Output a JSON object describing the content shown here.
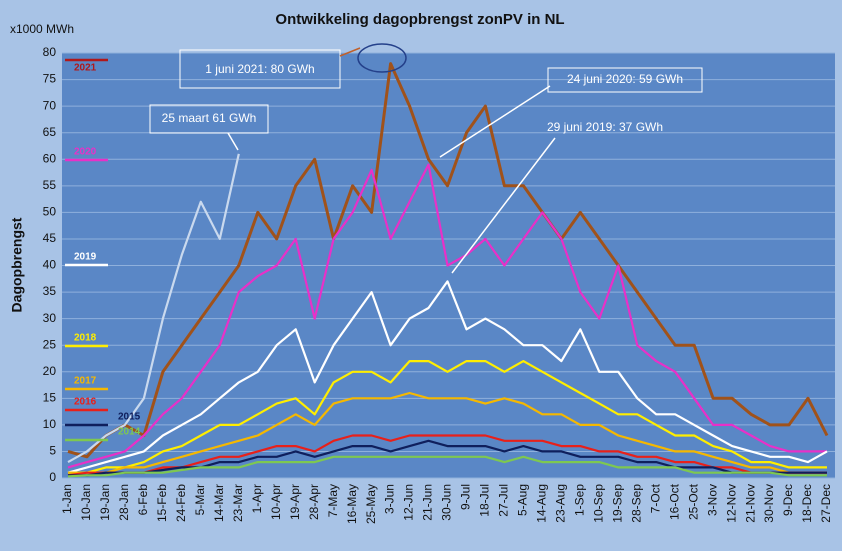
{
  "chart_data": {
    "type": "line",
    "title": "Ontwikkeling dagopbrengst zonPV in NL",
    "y_label": "Dagopbrengst",
    "y_unit": "x1000 MWh",
    "categories": [
      "1-Jan",
      "10-Jan",
      "19-Jan",
      "28-Jan",
      "6-Feb",
      "15-Feb",
      "24-Feb",
      "5-Mar",
      "14-Mar",
      "23-Mar",
      "1-Apr",
      "10-Apr",
      "19-Apr",
      "28-Apr",
      "7-May",
      "16-May",
      "25-May",
      "3-Jun",
      "12-Jun",
      "21-Jun",
      "30-Jun",
      "9-Jul",
      "18-Jul",
      "27-Jul",
      "5-Aug",
      "14-Aug",
      "23-Aug",
      "1-Sep",
      "10-Sep",
      "19-Sep",
      "28-Sep",
      "7-Oct",
      "16-Oct",
      "25-Oct",
      "3-Nov",
      "12-Nov",
      "21-Nov",
      "30-Nov",
      "9-Dec",
      "18-Dec",
      "27-Dec"
    ],
    "ylim": [
      0,
      80
    ],
    "yticks": [
      0,
      5,
      10,
      15,
      20,
      25,
      30,
      35,
      40,
      45,
      50,
      55,
      60,
      65,
      70,
      75,
      80
    ],
    "grid": true,
    "series": [
      {
        "name": "2021",
        "color": "#a0521a",
        "values": [
          5,
          4,
          8,
          10,
          8,
          20,
          25,
          30,
          35,
          40,
          50,
          45,
          55,
          60,
          45,
          55,
          50,
          78,
          70,
          60,
          55,
          65,
          70,
          55,
          55,
          50,
          45,
          50,
          45,
          40,
          35,
          30,
          25,
          25,
          15,
          15,
          12,
          10,
          10,
          15,
          8
        ]
      },
      {
        "color": "#c9d9ee",
        "values": [
          3,
          5,
          8,
          10,
          15,
          30,
          42,
          52,
          45,
          61,
          null,
          null,
          null,
          null,
          null,
          null,
          null,
          null,
          null,
          null,
          null,
          null,
          null,
          null,
          null,
          null,
          null,
          null,
          null,
          null,
          null,
          null,
          null,
          null,
          null,
          null,
          null,
          null,
          null,
          null,
          null
        ]
      },
      {
        "name": "2020",
        "color": "#e830c8",
        "values": [
          2,
          3,
          4,
          5,
          8,
          12,
          15,
          20,
          25,
          35,
          38,
          40,
          45,
          30,
          45,
          50,
          58,
          45,
          52,
          59,
          40,
          42,
          45,
          40,
          45,
          50,
          45,
          35,
          30,
          40,
          25,
          22,
          20,
          15,
          10,
          10,
          8,
          6,
          5,
          5,
          5
        ]
      },
      {
        "name": "2019",
        "color": "#ffffff",
        "values": [
          1,
          2,
          3,
          4,
          5,
          8,
          10,
          12,
          15,
          18,
          20,
          25,
          28,
          18,
          25,
          30,
          35,
          25,
          30,
          32,
          37,
          28,
          30,
          28,
          25,
          25,
          22,
          28,
          20,
          20,
          15,
          12,
          12,
          10,
          8,
          6,
          5,
          4,
          4,
          3,
          5
        ]
      },
      {
        "name": "2018",
        "color": "#ffee00",
        "values": [
          1,
          1,
          2,
          2,
          3,
          5,
          6,
          8,
          10,
          10,
          12,
          14,
          15,
          12,
          18,
          20,
          20,
          18,
          22,
          22,
          20,
          22,
          22,
          20,
          22,
          20,
          18,
          16,
          14,
          12,
          12,
          10,
          8,
          8,
          6,
          5,
          3,
          3,
          2,
          2,
          2
        ]
      },
      {
        "name": "2017",
        "color": "#f5b800",
        "values": [
          1,
          1,
          1,
          2,
          2,
          3,
          4,
          5,
          6,
          7,
          8,
          10,
          12,
          10,
          14,
          15,
          15,
          15,
          16,
          15,
          15,
          15,
          14,
          15,
          14,
          12,
          12,
          10,
          10,
          8,
          7,
          6,
          5,
          5,
          4,
          3,
          2,
          2,
          1,
          1,
          1
        ]
      },
      {
        "name": "2016",
        "color": "#e8201a",
        "values": [
          0.5,
          1,
          1,
          1,
          1,
          2,
          2,
          3,
          4,
          4,
          5,
          6,
          6,
          5,
          7,
          8,
          8,
          7,
          8,
          8,
          8,
          8,
          8,
          7,
          7,
          7,
          6,
          6,
          5,
          5,
          4,
          4,
          3,
          3,
          2,
          2,
          1,
          1,
          1,
          1,
          1
        ]
      },
      {
        "name": "2015",
        "color": "#0f1f5c",
        "values": [
          0.5,
          0.5,
          1,
          1,
          1,
          1.5,
          2,
          2,
          3,
          3,
          4,
          4,
          5,
          4,
          5,
          6,
          6,
          5,
          6,
          7,
          6,
          6,
          6,
          5,
          6,
          5,
          5,
          4,
          4,
          4,
          3,
          3,
          2,
          2,
          2,
          1,
          1,
          1,
          1,
          1,
          1
        ]
      },
      {
        "name": "2014",
        "color": "#7ec850",
        "values": [
          0.3,
          0.5,
          0.5,
          1,
          1,
          1,
          1.5,
          2,
          2,
          2,
          3,
          3,
          3,
          3,
          4,
          4,
          4,
          4,
          4,
          4,
          4,
          4,
          4,
          3,
          4,
          3,
          3,
          3,
          3,
          2,
          2,
          2,
          2,
          1,
          1,
          1,
          1,
          1,
          0.5,
          0.5,
          0.5
        ]
      }
    ],
    "annotations": [
      "1 juni 2021: 80 GWh",
      "24 juni 2020: 59 GWh",
      "29 juni 2019: 37 GWh",
      "25 maart 61 GWh"
    ]
  }
}
